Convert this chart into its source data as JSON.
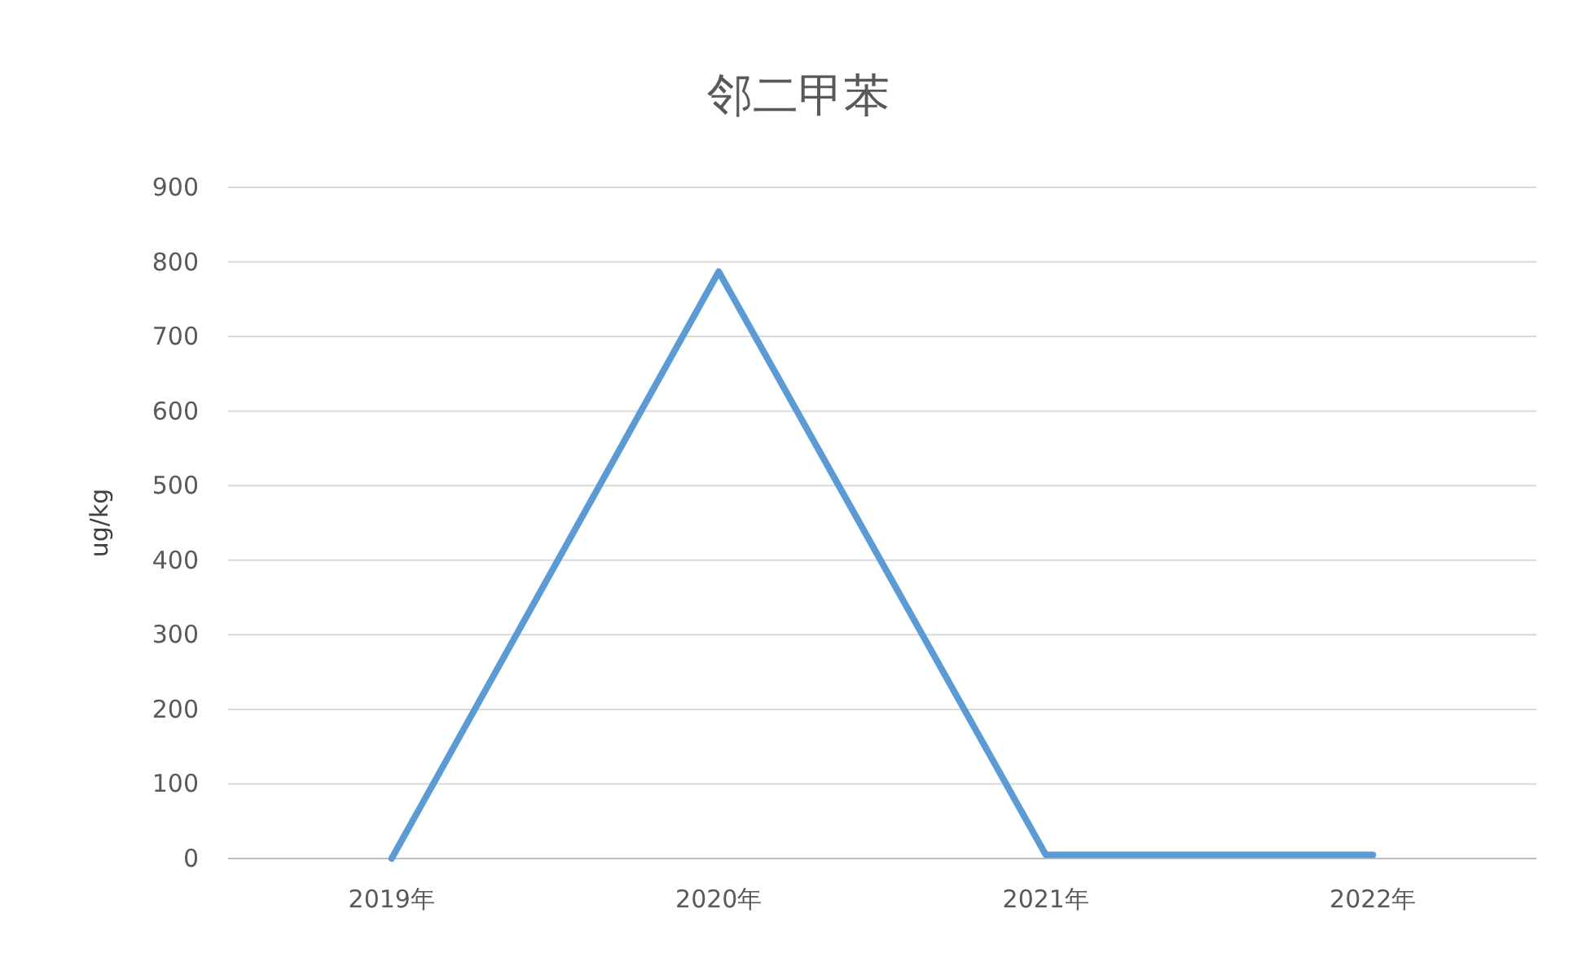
{
  "chart_data": {
    "type": "line",
    "title": "邻二甲苯",
    "ylabel": "ug/kg",
    "categories": [
      "2019年",
      "2020年",
      "2021年",
      "2022年"
    ],
    "series": [
      {
        "color": "#5b9bd5",
        "values": [
          0,
          787,
          5,
          5
        ]
      }
    ],
    "ylim": [
      0,
      900
    ],
    "yticks": [
      0,
      100,
      200,
      300,
      400,
      500,
      600,
      700,
      800,
      900
    ],
    "grid": "y",
    "marker": "none",
    "line_style": "solid"
  }
}
